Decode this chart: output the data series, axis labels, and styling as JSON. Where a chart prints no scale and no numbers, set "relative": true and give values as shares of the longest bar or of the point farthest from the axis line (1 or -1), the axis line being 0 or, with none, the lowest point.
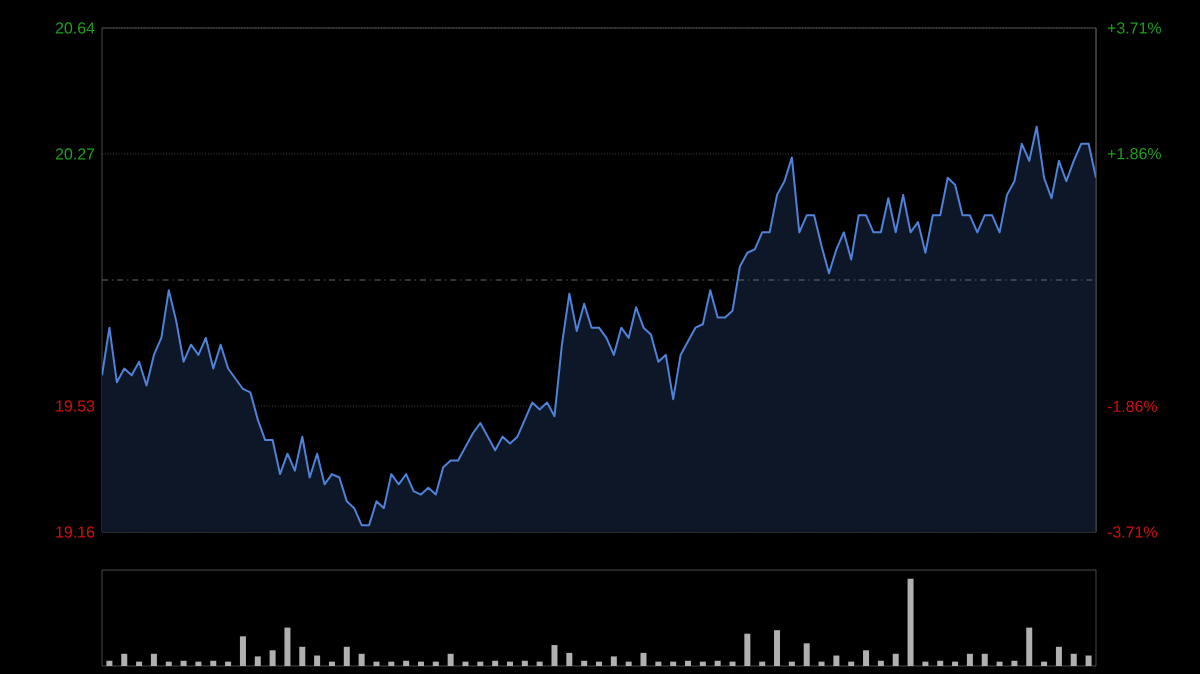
{
  "chart_data": [
    {
      "type": "area",
      "ylim": [
        19.16,
        20.64
      ],
      "y2lim": [
        -3.71,
        3.71
      ],
      "grid": "y",
      "yticks": [
        19.16,
        19.53,
        20.27,
        20.64
      ],
      "y2ticks": [
        {
          "value": -3.71,
          "label": "-3.71%"
        },
        {
          "value": -1.86,
          "label": "-1.86%"
        },
        {
          "value": 1.86,
          "label": "+1.86%"
        },
        {
          "value": 3.71,
          "label": "+3.71%"
        }
      ],
      "ref_lines": [
        {
          "axis": "y",
          "value": 19.9,
          "line_style": "dashdot"
        }
      ],
      "categories": [
        null,
        null,
        null,
        null,
        null,
        null,
        null,
        null,
        null,
        null,
        null,
        null,
        null,
        null,
        null,
        null,
        null,
        null,
        null,
        null,
        null,
        null,
        null,
        null,
        null,
        null,
        null,
        null,
        null,
        null,
        null,
        null,
        null,
        null,
        null,
        null,
        null,
        null,
        null,
        null,
        null,
        null,
        null,
        null,
        null,
        null,
        null,
        null,
        null,
        null,
        null,
        null,
        null,
        null,
        null,
        null,
        null,
        null,
        null,
        null,
        null,
        null,
        null,
        null,
        null,
        null,
        null,
        null,
        null,
        null,
        null,
        null,
        null,
        null,
        null,
        null,
        null,
        null,
        null,
        null,
        null,
        null,
        null,
        null,
        null,
        null,
        null,
        null,
        null,
        null,
        null,
        null,
        null,
        null,
        null,
        null,
        null,
        null,
        null,
        null,
        null,
        null,
        null,
        null,
        null,
        null,
        null,
        null,
        null,
        null,
        null,
        null,
        null,
        null,
        null,
        null,
        null,
        null,
        null,
        null,
        null,
        null,
        null,
        null,
        null,
        null,
        null,
        null,
        null,
        null,
        null,
        null,
        null,
        null,
        null
      ],
      "series": [
        {
          "color": "#4f82d8",
          "values": [
            19.62,
            19.76,
            19.6,
            19.64,
            19.62,
            19.66,
            19.59,
            19.68,
            19.73,
            19.87,
            19.78,
            19.66,
            19.71,
            19.68,
            19.73,
            19.64,
            19.71,
            19.64,
            19.61,
            19.58,
            19.57,
            19.49,
            19.43,
            19.43,
            19.33,
            19.39,
            19.34,
            19.44,
            19.32,
            19.39,
            19.3,
            19.33,
            19.32,
            19.25,
            19.23,
            19.18,
            19.18,
            19.25,
            19.23,
            19.33,
            19.3,
            19.33,
            19.28,
            19.27,
            19.29,
            19.27,
            19.35,
            19.37,
            19.37,
            19.41,
            19.45,
            19.48,
            19.44,
            19.4,
            19.44,
            19.42,
            19.44,
            19.49,
            19.54,
            19.52,
            19.54,
            19.5,
            19.71,
            19.86,
            19.75,
            19.83,
            19.76,
            19.76,
            19.73,
            19.68,
            19.76,
            19.73,
            19.82,
            19.76,
            19.74,
            19.66,
            19.68,
            19.55,
            19.68,
            19.72,
            19.76,
            19.77,
            19.87,
            19.79,
            19.79,
            19.81,
            19.94,
            19.98,
            19.99,
            20.04,
            20.04,
            20.15,
            20.19,
            20.26,
            20.04,
            20.09,
            20.09,
            20.0,
            19.92,
            19.99,
            20.04,
            19.96,
            20.09,
            20.09,
            20.04,
            20.04,
            20.14,
            20.04,
            20.15,
            20.04,
            20.07,
            19.98,
            20.09,
            20.09,
            20.2,
            20.18,
            20.09,
            20.09,
            20.04,
            20.09,
            20.09,
            20.04,
            20.15,
            20.19,
            20.3,
            20.25,
            20.35,
            20.2,
            20.14,
            20.25,
            20.19,
            20.25,
            20.3,
            20.3,
            20.2
          ]
        }
      ]
    },
    {
      "type": "bar",
      "relative": true,
      "categories": [
        null,
        null,
        null,
        null,
        null,
        null,
        null,
        null,
        null,
        null,
        null,
        null,
        null,
        null,
        null,
        null,
        null,
        null,
        null,
        null,
        null,
        null,
        null,
        null,
        null,
        null,
        null,
        null,
        null,
        null,
        null,
        null,
        null,
        null,
        null,
        null,
        null,
        null,
        null,
        null,
        null,
        null,
        null,
        null,
        null,
        null,
        null,
        null,
        null,
        null,
        null,
        null,
        null,
        null,
        null,
        null,
        null,
        null,
        null,
        null,
        null,
        null,
        null,
        null,
        null,
        null,
        null
      ],
      "series": [
        {
          "color": "#b0b0b0",
          "values": [
            0.06,
            0.14,
            0.05,
            0.14,
            0.05,
            0.06,
            0.05,
            0.06,
            0.05,
            0.34,
            0.11,
            0.18,
            0.44,
            0.22,
            0.12,
            0.05,
            0.22,
            0.14,
            0.05,
            0.05,
            0.06,
            0.05,
            0.05,
            0.14,
            0.05,
            0.05,
            0.06,
            0.05,
            0.06,
            0.05,
            0.24,
            0.15,
            0.06,
            0.05,
            0.11,
            0.05,
            0.15,
            0.05,
            0.05,
            0.06,
            0.05,
            0.06,
            0.05,
            0.37,
            0.05,
            0.41,
            0.05,
            0.26,
            0.05,
            0.12,
            0.05,
            0.18,
            0.06,
            0.14,
            1.0,
            0.05,
            0.06,
            0.05,
            0.14,
            0.14,
            0.05,
            0.06,
            0.44,
            0.05,
            0.22,
            0.14,
            0.12
          ]
        }
      ]
    }
  ]
}
